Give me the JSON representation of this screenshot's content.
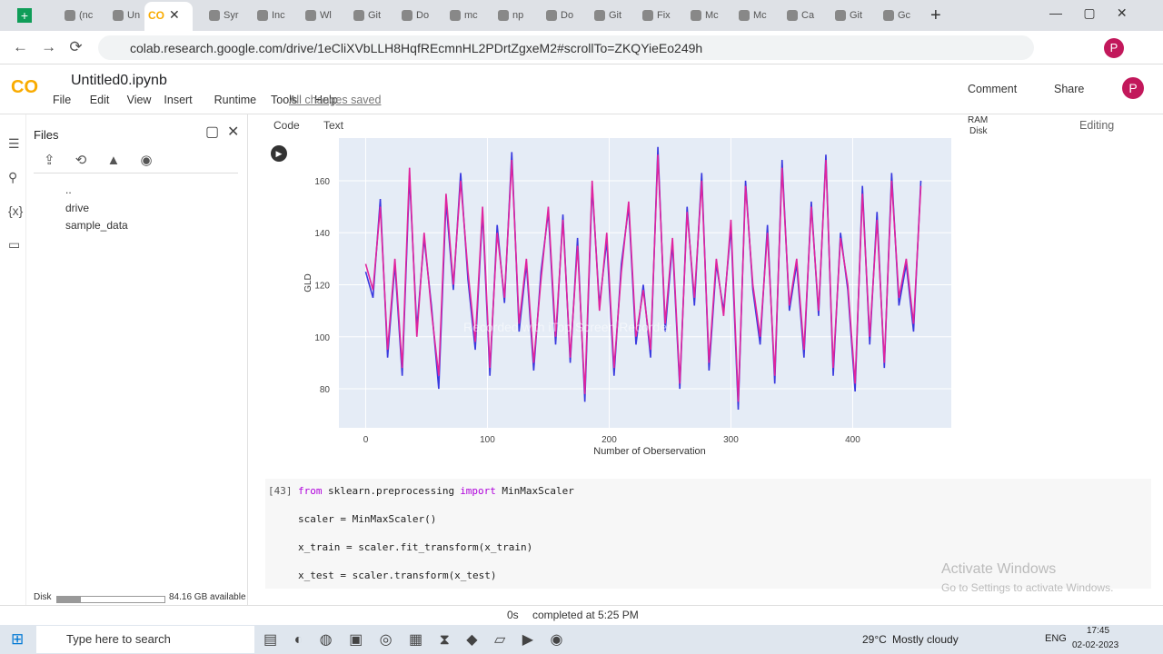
{
  "browser": {
    "tabs": [
      "(nc",
      "Un",
      "Syr",
      "Inc",
      "Wl",
      "Git",
      "Do",
      "mc",
      "np",
      "Do",
      "Git",
      "Fix",
      "Mc",
      "Mc",
      "Ca",
      "Git",
      "Gc"
    ],
    "url": "colab.research.google.com/drive/1eCliXVbLLH8HqfREcmnHL2PDrtZgxeM2#scrollTo=ZKQYieEo249h",
    "avatar": "P"
  },
  "colab": {
    "logo": "CO",
    "notebook": "Untitled0.ipynb",
    "menu": [
      "File",
      "Edit",
      "View",
      "Insert",
      "Runtime",
      "Tools",
      "Help"
    ],
    "saved": "All changes saved",
    "comment": "Comment",
    "share": "Share",
    "avatar": "P",
    "add_code": "Code",
    "add_text": "Text",
    "ram": "RAM",
    "disk": "Disk",
    "mode": "Editing"
  },
  "files": {
    "title": "Files",
    "items": [
      "..",
      "drive",
      "sample_data"
    ],
    "disk_label": "Disk",
    "disk_free": "84.16 GB available"
  },
  "cell": {
    "count": "[43]",
    "lines": [
      [
        "from",
        " sklearn.preprocessing ",
        "import",
        " MinMaxScaler"
      ],
      [
        "scaler = MinMaxScaler()"
      ],
      [
        "x_train = scaler.fit_transform(x_train)"
      ],
      [
        "x_test = scaler.transform(x_test)"
      ]
    ]
  },
  "status": {
    "time": "0s",
    "message": "completed at 5:25 PM"
  },
  "watermark": "Recorded with iTop Screen Recorder",
  "activation": {
    "title": "Activate Windows",
    "subtitle": "Go to Settings to activate Windows."
  },
  "taskbar": {
    "search": "Type here to search",
    "temperature": "29°C",
    "weather": "Mostly cloudy",
    "language": "ENG",
    "time": "17:45",
    "date": "02-02-2023"
  },
  "chart_data": {
    "type": "line",
    "x_label": "Number of Oberservation",
    "y_label": "GLD",
    "x": [
      0,
      6,
      12,
      18,
      24,
      30,
      36,
      42,
      48,
      54,
      60,
      66,
      72,
      78,
      84,
      90,
      96,
      102,
      108,
      114,
      120,
      126,
      132,
      138,
      144,
      150,
      156,
      162,
      168,
      174,
      180,
      186,
      192,
      198,
      204,
      210,
      216,
      222,
      228,
      234,
      240,
      246,
      252,
      258,
      264,
      270,
      276,
      282,
      288,
      294,
      300,
      306,
      312,
      318,
      324,
      330,
      336,
      342,
      348,
      354,
      360,
      366,
      372,
      378,
      384,
      390,
      396,
      402,
      408,
      414,
      420,
      426,
      432,
      438,
      444,
      450,
      456
    ],
    "series": [
      {
        "color": "#3a3adf",
        "values": [
          125,
          115,
          153,
          92,
          128,
          85,
          162,
          103,
          138,
          112,
          80,
          152,
          118,
          163,
          122,
          95,
          148,
          85,
          143,
          113,
          171,
          102,
          128,
          87,
          125,
          148,
          97,
          147,
          90,
          138,
          75,
          158,
          112,
          137,
          85,
          128,
          150,
          97,
          120,
          92,
          173,
          102,
          136,
          80,
          150,
          112,
          163,
          87,
          128,
          110,
          142,
          72,
          160,
          118,
          97,
          143,
          82,
          168,
          110,
          128,
          92,
          152,
          108,
          170,
          85,
          140,
          118,
          79,
          158,
          97,
          148,
          88,
          163,
          112,
          128,
          102,
          160
        ]
      },
      {
        "color": "#e0249e",
        "values": [
          128,
          118,
          150,
          95,
          130,
          88,
          165,
          100,
          140,
          110,
          85,
          155,
          120,
          160,
          125,
          98,
          150,
          88,
          140,
          115,
          168,
          105,
          130,
          90,
          122,
          150,
          100,
          145,
          92,
          135,
          78,
          160,
          110,
          140,
          88,
          125,
          152,
          100,
          118,
          95,
          170,
          105,
          138,
          82,
          148,
          115,
          160,
          90,
          130,
          108,
          145,
          75,
          158,
          120,
          100,
          140,
          85,
          165,
          112,
          130,
          95,
          150,
          110,
          168,
          88,
          138,
          120,
          82,
          155,
          100,
          145,
          90,
          160,
          115,
          130,
          105,
          158
        ]
      }
    ],
    "xlim": [
      -22,
      481
    ],
    "ylim": [
      65,
      176.4
    ],
    "xticks": [
      0,
      100,
      200,
      300,
      400
    ],
    "yticks": [
      80,
      100,
      120,
      140,
      160
    ],
    "grid": true,
    "background": "#e5ecf6"
  }
}
